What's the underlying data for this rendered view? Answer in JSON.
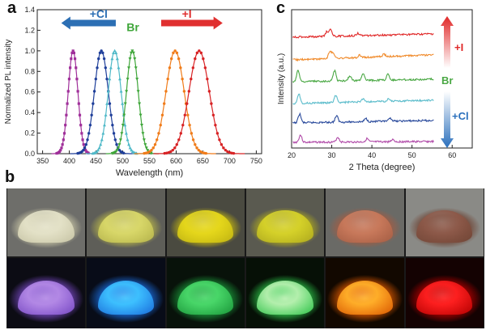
{
  "panels": {
    "a": "a",
    "b": "b",
    "c": "c"
  },
  "chart_data": [
    {
      "type": "line",
      "xlabel": "Wavelength (nm)",
      "ylabel": "Normalized PL intensity",
      "xlim": [
        340,
        760
      ],
      "ylim": [
        0,
        1.4
      ],
      "xticks": [
        350,
        400,
        450,
        500,
        550,
        600,
        650,
        700,
        750
      ],
      "yticks": [
        0.0,
        0.2,
        0.4,
        0.6,
        0.8,
        1.0,
        1.2,
        1.4
      ],
      "ytick_labels": [
        "0.0",
        "0.2",
        "0.4",
        "0.6",
        "0.8",
        "1.0",
        "1.2",
        "1.4"
      ],
      "series": [
        {
          "color": "#a0309a",
          "marker": "square",
          "peak": 407,
          "width": 9,
          "fwhm_nm": 21
        },
        {
          "color": "#1f3f9a",
          "marker": "circle",
          "peak": 460,
          "width": 13,
          "fwhm_nm": 30
        },
        {
          "color": "#4fb9c8",
          "marker": "triangle",
          "peak": 485,
          "width": 12,
          "fwhm_nm": 28
        },
        {
          "color": "#3fa63a",
          "marker": "triangle-down",
          "peak": 518,
          "width": 11,
          "fwhm_nm": 26
        },
        {
          "color": "#f07c1a",
          "marker": "circle",
          "peak": 598,
          "width": 17,
          "fwhm_nm": 40
        },
        {
          "color": "#d82325",
          "marker": "circle",
          "peak": 643,
          "width": 19,
          "fwhm_nm": 45
        }
      ],
      "annotations": {
        "cl": {
          "text": "+Cl",
          "color": "#2c6fb4"
        },
        "br": {
          "text": "Br",
          "color": "#3fa63a"
        },
        "i": {
          "text": "+I",
          "color": "#e03030"
        }
      }
    },
    {
      "type": "line",
      "xlabel": "2 Theta (degree)",
      "ylabel": "Intensity (a.u.)",
      "xlim": [
        20,
        65
      ],
      "xticks": [
        20,
        30,
        40,
        50,
        60
      ],
      "series": [
        {
          "color": "#b04aa8",
          "peaks": [
            [
              22.2,
              9
            ],
            [
              31.5,
              6
            ],
            [
              38.8,
              4
            ],
            [
              45.2,
              3
            ]
          ]
        },
        {
          "color": "#2a4a9c",
          "peaks": [
            [
              22,
              11
            ],
            [
              31.2,
              8
            ],
            [
              38.5,
              4
            ],
            [
              44.6,
              4
            ]
          ]
        },
        {
          "color": "#5bbccb",
          "peaks": [
            [
              21.8,
              12
            ],
            [
              31,
              9
            ],
            [
              37.9,
              4
            ],
            [
              44.2,
              3
            ]
          ]
        },
        {
          "color": "#4aa844",
          "peaks": [
            [
              21.6,
              14
            ],
            [
              30.7,
              13
            ],
            [
              34.5,
              6
            ],
            [
              37.8,
              9
            ],
            [
              44,
              7
            ]
          ]
        },
        {
          "color": "#f08a2a",
          "peaks": [
            [
              29.5,
              8
            ],
            [
              30.3,
              7
            ],
            [
              37,
              3
            ],
            [
              43,
              3
            ]
          ]
        },
        {
          "color": "#e02828",
          "peaks": [
            [
              28.8,
              6
            ],
            [
              29.7,
              8
            ],
            [
              36.5,
              3
            ]
          ]
        }
      ],
      "annotations": {
        "i": {
          "text": "+I",
          "color": "#e02828"
        },
        "br": {
          "text": "Br",
          "color": "#4aa844"
        },
        "cl": {
          "text": "+Cl",
          "color": "#2a6fbc"
        }
      }
    }
  ],
  "photos": {
    "top": [
      {
        "bg": "#6e6e6a",
        "pile": "#e4e2c8",
        "shade": "#c9c6a6"
      },
      {
        "bg": "#5e5e58",
        "pile": "#d9d86a",
        "shade": "#b7b54a"
      },
      {
        "bg": "#4a4a40",
        "pile": "#e6d81c",
        "shade": "#c2b510"
      },
      {
        "bg": "#5a5a50",
        "pile": "#d6d22a",
        "shade": "#b0ab1c"
      },
      {
        "bg": "#6a6a66",
        "pile": "#c97a5c",
        "shade": "#a55c42"
      },
      {
        "bg": "#8a8a86",
        "pile": "#8e5a4a",
        "shade": "#6e4232"
      }
    ],
    "bottom": [
      {
        "bg": "#0c0c14",
        "pile": "#b48ae6",
        "glow": "#7a4ac8"
      },
      {
        "bg": "#080c18",
        "pile": "#3ec2ff",
        "glow": "#1a6ee0"
      },
      {
        "bg": "#08120a",
        "pile": "#4ad86a",
        "glow": "#1a9a3a"
      },
      {
        "bg": "#061006",
        "pile": "#b8f0b0",
        "glow": "#2ec84a"
      },
      {
        "bg": "#120800",
        "pile": "#ffb02a",
        "glow": "#e05a00"
      },
      {
        "bg": "#140202",
        "pile": "#ff2020",
        "glow": "#b80000"
      }
    ]
  }
}
